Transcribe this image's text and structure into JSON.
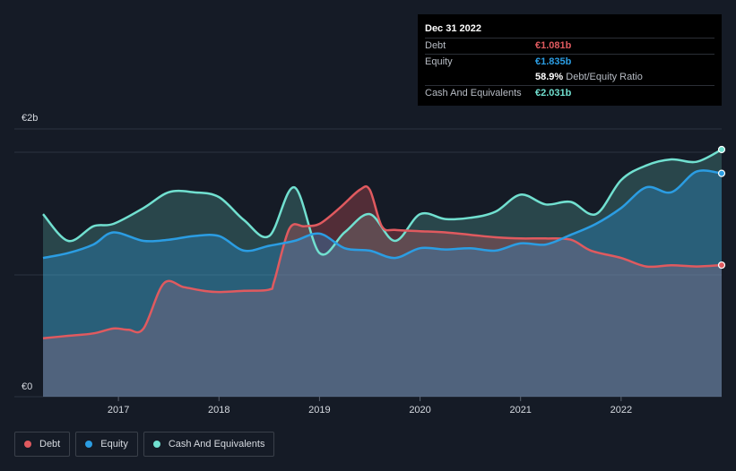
{
  "tooltip": {
    "date": "Dec 31 2022",
    "debt_label": "Debt",
    "debt_value": "€1.081b",
    "equity_label": "Equity",
    "equity_value": "€1.835b",
    "ratio_value": "58.9%",
    "ratio_label": "Debt/Equity Ratio",
    "cash_label": "Cash And Equivalents",
    "cash_value": "€2.031b"
  },
  "legend": {
    "debt": "Debt",
    "equity": "Equity",
    "cash": "Cash And Equivalents"
  },
  "colors": {
    "debt": "#e05a5f",
    "equity": "#2b9de3",
    "cash": "#71e0d0",
    "background": "#151b26"
  },
  "chart_data": {
    "type": "area",
    "title": "",
    "xlabel": "",
    "ylabel": "",
    "y_unit_labels": [
      "€0",
      "€2b"
    ],
    "ylim": [
      0,
      2.2
    ],
    "xlim": [
      2016.2,
      2023.0
    ],
    "x_ticks": [
      2017,
      2018,
      2019,
      2020,
      2021,
      2022
    ],
    "series": [
      {
        "name": "Debt",
        "points": [
          [
            2016.25,
            0.48
          ],
          [
            2016.5,
            0.5
          ],
          [
            2016.75,
            0.52
          ],
          [
            2016.95,
            0.56
          ],
          [
            2017.1,
            0.55
          ],
          [
            2017.25,
            0.56
          ],
          [
            2017.45,
            0.93
          ],
          [
            2017.65,
            0.9
          ],
          [
            2017.85,
            0.87
          ],
          [
            2018.0,
            0.86
          ],
          [
            2018.25,
            0.87
          ],
          [
            2018.5,
            0.88
          ],
          [
            2018.55,
            0.95
          ],
          [
            2018.7,
            1.38
          ],
          [
            2018.85,
            1.4
          ],
          [
            2019.0,
            1.42
          ],
          [
            2019.2,
            1.55
          ],
          [
            2019.4,
            1.7
          ],
          [
            2019.5,
            1.7
          ],
          [
            2019.62,
            1.4
          ],
          [
            2019.75,
            1.37
          ],
          [
            2020.0,
            1.36
          ],
          [
            2020.25,
            1.35
          ],
          [
            2020.5,
            1.33
          ],
          [
            2020.75,
            1.31
          ],
          [
            2021.0,
            1.3
          ],
          [
            2021.25,
            1.3
          ],
          [
            2021.5,
            1.29
          ],
          [
            2021.7,
            1.2
          ],
          [
            2022.0,
            1.14
          ],
          [
            2022.25,
            1.07
          ],
          [
            2022.5,
            1.08
          ],
          [
            2022.75,
            1.07
          ],
          [
            2023.0,
            1.081
          ]
        ]
      },
      {
        "name": "Equity",
        "points": [
          [
            2016.25,
            1.14
          ],
          [
            2016.5,
            1.18
          ],
          [
            2016.75,
            1.25
          ],
          [
            2016.95,
            1.35
          ],
          [
            2017.25,
            1.28
          ],
          [
            2017.5,
            1.29
          ],
          [
            2017.75,
            1.32
          ],
          [
            2018.0,
            1.32
          ],
          [
            2018.25,
            1.2
          ],
          [
            2018.5,
            1.24
          ],
          [
            2018.75,
            1.28
          ],
          [
            2019.0,
            1.34
          ],
          [
            2019.25,
            1.22
          ],
          [
            2019.5,
            1.2
          ],
          [
            2019.75,
            1.14
          ],
          [
            2020.0,
            1.22
          ],
          [
            2020.25,
            1.21
          ],
          [
            2020.5,
            1.22
          ],
          [
            2020.75,
            1.2
          ],
          [
            2021.0,
            1.26
          ],
          [
            2021.25,
            1.25
          ],
          [
            2021.5,
            1.33
          ],
          [
            2021.75,
            1.42
          ],
          [
            2022.0,
            1.55
          ],
          [
            2022.25,
            1.72
          ],
          [
            2022.5,
            1.68
          ],
          [
            2022.75,
            1.85
          ],
          [
            2023.0,
            1.835
          ]
        ]
      },
      {
        "name": "Cash And Equivalents",
        "points": [
          [
            2016.25,
            1.5
          ],
          [
            2016.5,
            1.28
          ],
          [
            2016.75,
            1.4
          ],
          [
            2016.95,
            1.42
          ],
          [
            2017.25,
            1.55
          ],
          [
            2017.5,
            1.68
          ],
          [
            2017.75,
            1.68
          ],
          [
            2018.0,
            1.64
          ],
          [
            2018.25,
            1.45
          ],
          [
            2018.5,
            1.32
          ],
          [
            2018.75,
            1.72
          ],
          [
            2019.0,
            1.18
          ],
          [
            2019.25,
            1.35
          ],
          [
            2019.5,
            1.5
          ],
          [
            2019.75,
            1.28
          ],
          [
            2020.0,
            1.5
          ],
          [
            2020.25,
            1.46
          ],
          [
            2020.5,
            1.47
          ],
          [
            2020.75,
            1.52
          ],
          [
            2021.0,
            1.66
          ],
          [
            2021.25,
            1.58
          ],
          [
            2021.5,
            1.6
          ],
          [
            2021.75,
            1.5
          ],
          [
            2022.0,
            1.78
          ],
          [
            2022.25,
            1.9
          ],
          [
            2022.5,
            1.95
          ],
          [
            2022.75,
            1.93
          ],
          [
            2023.0,
            2.031
          ]
        ]
      }
    ]
  }
}
